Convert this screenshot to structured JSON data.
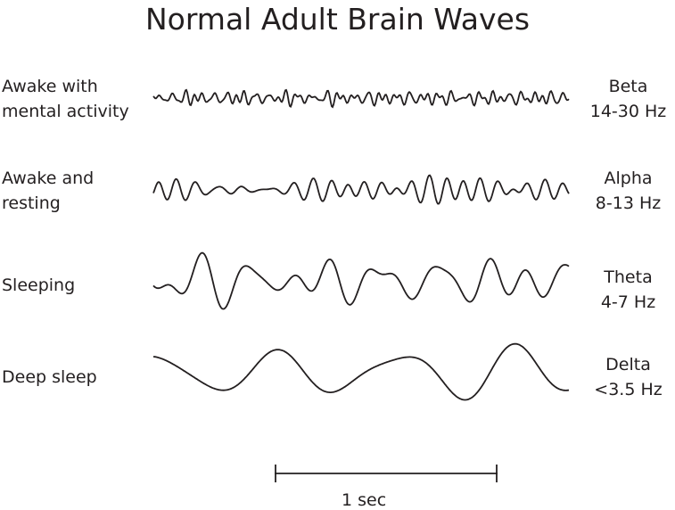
{
  "title": "Normal Adult Brain Waves",
  "rows": [
    {
      "state": [
        "Awake with",
        "mental activity"
      ],
      "wave": "Beta",
      "frequency": "14-30 Hz"
    },
    {
      "state": [
        "Awake and",
        "resting"
      ],
      "wave": "Alpha",
      "frequency": "8-13 Hz"
    },
    {
      "state": [
        "Sleeping"
      ],
      "wave": "Theta",
      "frequency": "4-7 Hz"
    },
    {
      "state": [
        "Deep sleep"
      ],
      "wave": "Delta",
      "frequency": "<3.5 Hz"
    }
  ],
  "scale_bar": {
    "label": "1 sec"
  },
  "colors": {
    "ink": "#231f20"
  }
}
